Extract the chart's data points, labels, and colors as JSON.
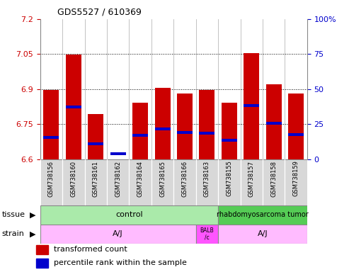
{
  "title": "GDS5527 / 610369",
  "samples": [
    "GSM738156",
    "GSM738160",
    "GSM738161",
    "GSM738162",
    "GSM738164",
    "GSM738165",
    "GSM738166",
    "GSM738163",
    "GSM738155",
    "GSM738157",
    "GSM738158",
    "GSM738159"
  ],
  "red_tops": [
    6.895,
    7.048,
    6.793,
    6.6,
    6.843,
    6.905,
    6.882,
    6.896,
    6.843,
    7.053,
    6.922,
    6.882
  ],
  "blue_values": [
    6.693,
    6.823,
    6.665,
    6.622,
    6.702,
    6.73,
    6.713,
    6.71,
    6.682,
    6.83,
    6.755,
    6.705
  ],
  "ymin": 6.6,
  "ymax": 7.2,
  "yticks_left": [
    6.6,
    6.75,
    6.9,
    7.05,
    7.2
  ],
  "yticks_right_vals": [
    0,
    25,
    50,
    75,
    100
  ],
  "gridlines": [
    6.75,
    6.9,
    7.05
  ],
  "bar_color": "#cc0000",
  "blue_color": "#0000cc",
  "bar_bottom": 6.6,
  "tissue_control_label": "control",
  "tissue_tumor_label": "rhabdomyosarcoma tumor",
  "tissue_control_color": "#aaeaaa",
  "tissue_tumor_color": "#55cc55",
  "strain_aj_label": "A/J",
  "strain_balb_label": "BALB\n/c",
  "strain_color": "#ffbbff",
  "strain_balb_color": "#ff55ff",
  "legend_red_label": "transformed count",
  "legend_blue_label": "percentile rank within the sample",
  "n_control": 8,
  "n_balb": 1,
  "n_tumor": 4
}
